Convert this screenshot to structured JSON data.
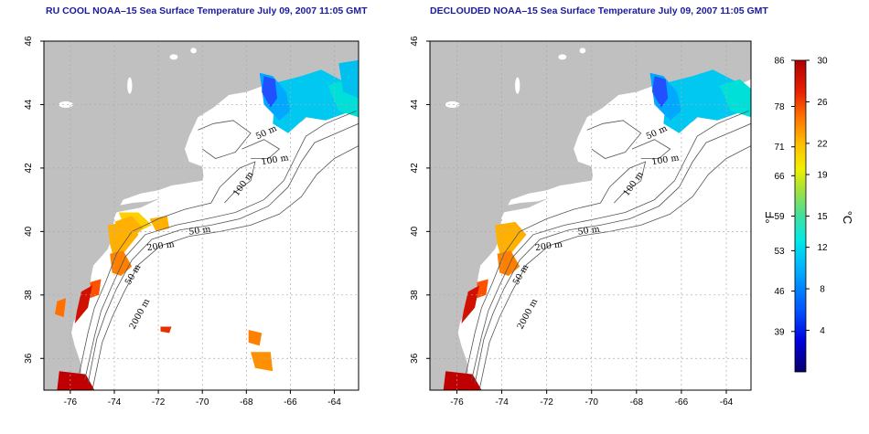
{
  "panels": [
    {
      "title": "RU COOL NOAA–15 Sea Surface Temperature July 09, 2007 11:05 GMT",
      "variant": "cool"
    },
    {
      "title": "DECLOUDED NOAA–15 Sea Surface Temperature July 09, 2007 11:05 GMT",
      "variant": "declouded"
    }
  ],
  "axes": {
    "lon_ticks": [
      "-76",
      "-74",
      "-72",
      "-70",
      "-68",
      "-66",
      "-64"
    ],
    "lat_ticks": [
      "36",
      "38",
      "40",
      "42",
      "44",
      "46"
    ],
    "lon_range": [
      -77.2,
      -62.9
    ],
    "lat_range": [
      35,
      46
    ]
  },
  "contours": {
    "labels": [
      "50 m",
      "100 m",
      "100 m",
      "50 m",
      "200 m",
      "50 m",
      "2000 m"
    ]
  },
  "colorbar": {
    "f_ticks": [
      "86",
      "78",
      "71",
      "66",
      "59",
      "53",
      "46",
      "39"
    ],
    "c_ticks": [
      "30",
      "26",
      "22",
      "19",
      "15",
      "12",
      "8",
      "4"
    ],
    "f_unit": "°F",
    "c_unit": "°C",
    "range_c": [
      0,
      30
    ],
    "colors": [
      "#08006a",
      "#0000e0",
      "#0055ff",
      "#00b0ff",
      "#00e8e8",
      "#40e0a0",
      "#a0e040",
      "#f0f000",
      "#ffc000",
      "#ff7000",
      "#e82000",
      "#b00000"
    ]
  },
  "colors": {
    "land": "#c0c0c0",
    "grid": "#aaaaaa",
    "contour": "#555555",
    "title": "#1a1aa0"
  }
}
